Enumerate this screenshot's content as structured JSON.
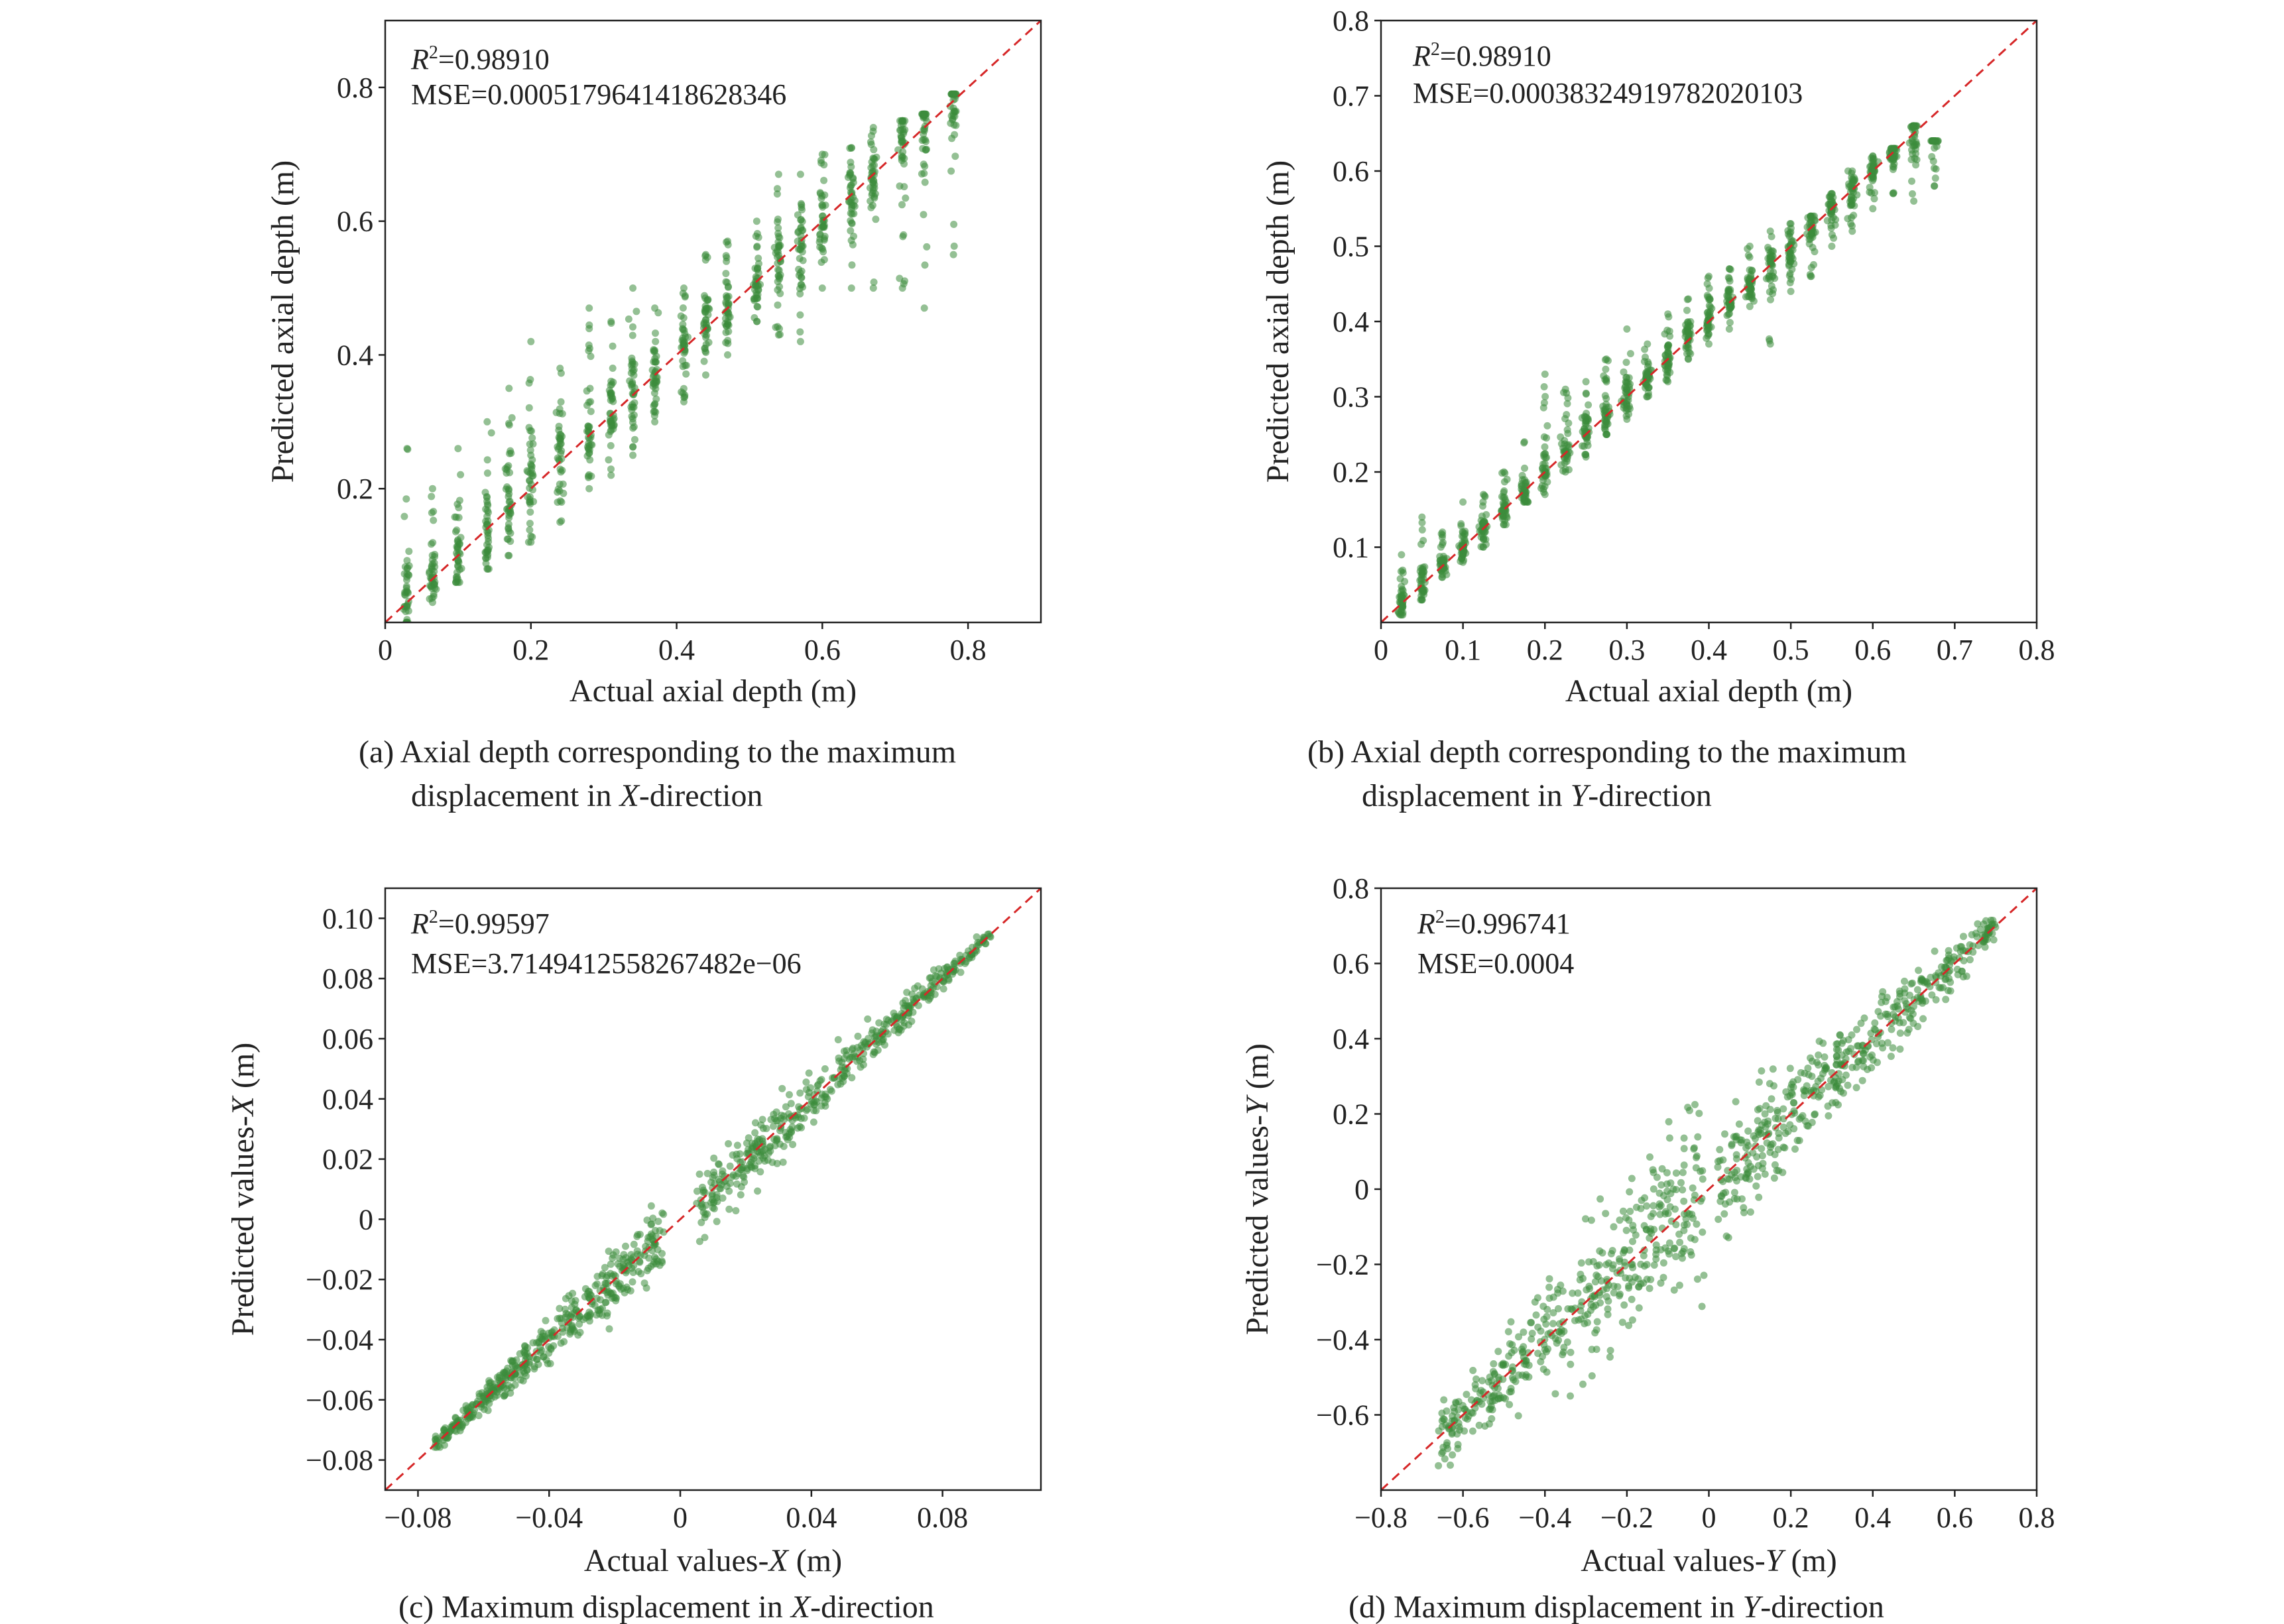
{
  "chart_data": [
    {
      "type": "scatter",
      "xlabel": {
        "pre": "Actual axial depth (m)",
        "it": "",
        "post": ""
      },
      "ylabel": {
        "pre": "Predicted axial depth (m)",
        "it": "",
        "post": ""
      },
      "xlim": [
        0,
        0.9
      ],
      "ylim": [
        0,
        0.9
      ],
      "xticks": [
        0,
        0.2,
        0.4,
        0.6,
        0.8
      ],
      "xtick_labels": [
        "0",
        "0.2",
        "0.4",
        "0.6",
        "0.8"
      ],
      "yticks": [
        0.2,
        0.4,
        0.6,
        0.8
      ],
      "ytick_labels": [
        "0.2",
        "0.4",
        "0.6",
        "0.8"
      ],
      "annotation": {
        "r2_label": "R",
        "r2_sup": "2",
        "r2_value": "=0.98910",
        "mse": "MSE=0.0005179641418628346"
      },
      "reference_line": "y = x (red dashed)",
      "point_color": "#3d8c3d",
      "line_color": "#d62728",
      "columns": [
        {
          "x": 0.03,
          "y_range": [
            0.0,
            0.26
          ]
        },
        {
          "x": 0.065,
          "y_range": [
            0.03,
            0.2
          ]
        },
        {
          "x": 0.1,
          "y_range": [
            0.06,
            0.26
          ]
        },
        {
          "x": 0.14,
          "y_range": [
            0.08,
            0.3
          ]
        },
        {
          "x": 0.17,
          "y_range": [
            0.1,
            0.35
          ]
        },
        {
          "x": 0.2,
          "y_range": [
            0.12,
            0.42
          ]
        },
        {
          "x": 0.24,
          "y_range": [
            0.15,
            0.38
          ]
        },
        {
          "x": 0.28,
          "y_range": [
            0.2,
            0.47
          ]
        },
        {
          "x": 0.31,
          "y_range": [
            0.22,
            0.45
          ]
        },
        {
          "x": 0.34,
          "y_range": [
            0.25,
            0.5
          ]
        },
        {
          "x": 0.37,
          "y_range": [
            0.3,
            0.47
          ]
        },
        {
          "x": 0.41,
          "y_range": [
            0.33,
            0.5
          ]
        },
        {
          "x": 0.44,
          "y_range": [
            0.37,
            0.55
          ]
        },
        {
          "x": 0.47,
          "y_range": [
            0.4,
            0.57
          ]
        },
        {
          "x": 0.51,
          "y_range": [
            0.45,
            0.6
          ]
        },
        {
          "x": 0.54,
          "y_range": [
            0.43,
            0.67
          ]
        },
        {
          "x": 0.57,
          "y_range": [
            0.42,
            0.67
          ]
        },
        {
          "x": 0.6,
          "y_range": [
            0.5,
            0.7
          ]
        },
        {
          "x": 0.64,
          "y_range": [
            0.5,
            0.71
          ]
        },
        {
          "x": 0.67,
          "y_range": [
            0.5,
            0.74
          ]
        },
        {
          "x": 0.71,
          "y_range": [
            0.5,
            0.75
          ]
        },
        {
          "x": 0.74,
          "y_range": [
            0.47,
            0.76
          ]
        },
        {
          "x": 0.78,
          "y_range": [
            0.55,
            0.79
          ]
        }
      ],
      "caption": {
        "line1": "(a) Axial depth corresponding to the maximum",
        "pre": "displacement in ",
        "it": "X",
        "post": "-direction"
      }
    },
    {
      "type": "scatter",
      "xlabel": {
        "pre": "Actual axial depth (m)",
        "it": "",
        "post": ""
      },
      "ylabel": {
        "pre": "Predicted axial depth (m)",
        "it": "",
        "post": ""
      },
      "xlim": [
        0,
        0.8
      ],
      "ylim": [
        0,
        0.8
      ],
      "xticks": [
        0,
        0.1,
        0.2,
        0.3,
        0.4,
        0.5,
        0.6,
        0.7,
        0.8
      ],
      "xtick_labels": [
        "0",
        "0.1",
        "0.2",
        "0.3",
        "0.4",
        "0.5",
        "0.6",
        "0.7",
        "0.8"
      ],
      "yticks": [
        0.1,
        0.2,
        0.3,
        0.4,
        0.5,
        0.6,
        0.7,
        0.8
      ],
      "ytick_labels": [
        "0.1",
        "0.2",
        "0.3",
        "0.4",
        "0.5",
        "0.6",
        "0.7",
        "0.8"
      ],
      "annotation": {
        "r2_label": "R",
        "r2_sup": "2",
        "r2_value": "=0.98910",
        "mse": "MSE=0.00038324919782020103"
      },
      "reference_line": "y = x (red dashed)",
      "point_color": "#3d8c3d",
      "line_color": "#d62728",
      "columns": [
        {
          "x": 0.025,
          "y_range": [
            0.01,
            0.09
          ]
        },
        {
          "x": 0.05,
          "y_range": [
            0.03,
            0.14
          ]
        },
        {
          "x": 0.075,
          "y_range": [
            0.06,
            0.12
          ]
        },
        {
          "x": 0.1,
          "y_range": [
            0.08,
            0.16
          ]
        },
        {
          "x": 0.125,
          "y_range": [
            0.1,
            0.17
          ]
        },
        {
          "x": 0.15,
          "y_range": [
            0.13,
            0.2
          ]
        },
        {
          "x": 0.175,
          "y_range": [
            0.16,
            0.24
          ]
        },
        {
          "x": 0.2,
          "y_range": [
            0.17,
            0.33
          ]
        },
        {
          "x": 0.225,
          "y_range": [
            0.2,
            0.31
          ]
        },
        {
          "x": 0.25,
          "y_range": [
            0.22,
            0.32
          ]
        },
        {
          "x": 0.275,
          "y_range": [
            0.25,
            0.35
          ]
        },
        {
          "x": 0.3,
          "y_range": [
            0.27,
            0.39
          ]
        },
        {
          "x": 0.325,
          "y_range": [
            0.3,
            0.37
          ]
        },
        {
          "x": 0.35,
          "y_range": [
            0.32,
            0.41
          ]
        },
        {
          "x": 0.375,
          "y_range": [
            0.35,
            0.43
          ]
        },
        {
          "x": 0.4,
          "y_range": [
            0.37,
            0.46
          ]
        },
        {
          "x": 0.425,
          "y_range": [
            0.39,
            0.47
          ]
        },
        {
          "x": 0.45,
          "y_range": [
            0.42,
            0.5
          ]
        },
        {
          "x": 0.475,
          "y_range": [
            0.37,
            0.52
          ]
        },
        {
          "x": 0.5,
          "y_range": [
            0.44,
            0.53
          ]
        },
        {
          "x": 0.525,
          "y_range": [
            0.46,
            0.54
          ]
        },
        {
          "x": 0.55,
          "y_range": [
            0.5,
            0.57
          ]
        },
        {
          "x": 0.575,
          "y_range": [
            0.52,
            0.6
          ]
        },
        {
          "x": 0.6,
          "y_range": [
            0.55,
            0.62
          ]
        },
        {
          "x": 0.625,
          "y_range": [
            0.57,
            0.63
          ]
        },
        {
          "x": 0.65,
          "y_range": [
            0.56,
            0.66
          ]
        },
        {
          "x": 0.675,
          "y_range": [
            0.58,
            0.64
          ]
        }
      ],
      "caption": {
        "line1": "(b) Axial depth corresponding to the maximum",
        "pre": "displacement in ",
        "it": "Y",
        "post": "-direction"
      }
    },
    {
      "type": "scatter",
      "xlabel": {
        "pre": "Actual values-",
        "it": "X",
        "post": " (m)"
      },
      "ylabel": {
        "pre": "Predicted values-",
        "it": "X",
        "post": " (m)"
      },
      "xlim": [
        -0.09,
        0.11
      ],
      "ylim": [
        -0.09,
        0.11
      ],
      "xticks": [
        -0.08,
        -0.04,
        0,
        0.04,
        0.08
      ],
      "xtick_labels": [
        "−0.08",
        "−0.04",
        "0",
        "0.04",
        "0.08"
      ],
      "yticks": [
        -0.08,
        -0.06,
        -0.04,
        -0.02,
        0,
        0.02,
        0.04,
        0.06,
        0.08,
        0.1
      ],
      "ytick_labels": [
        "−0.08",
        "−0.06",
        "−0.04",
        "−0.02",
        "0",
        "0.02",
        "0.04",
        "0.06",
        "0.08",
        "0.10"
      ],
      "annotation": {
        "r2_label": "R",
        "r2_sup": "2",
        "r2_value": "=0.99597",
        "mse": "MSE=3.7149412558267482e−06"
      },
      "reference_line": "y = x (red dashed)",
      "point_color": "#3d8c3d",
      "line_color": "#d62728",
      "clusters": [
        {
          "x_range": [
            -0.075,
            -0.005
          ],
          "spread": [
            0.001,
            0.006
          ]
        },
        {
          "x_range": [
            0.005,
            0.095
          ],
          "spread": [
            0.006,
            0.001
          ]
        }
      ],
      "caption": {
        "line1": "",
        "pre": "(c) Maximum displacement in ",
        "it": "X",
        "post": "-direction"
      }
    },
    {
      "type": "scatter",
      "xlabel": {
        "pre": "Actual values-",
        "it": "Y",
        "post": " (m)"
      },
      "ylabel": {
        "pre": "Predicted values-",
        "it": "Y",
        "post": " (m)"
      },
      "xlim": [
        -0.8,
        0.8
      ],
      "ylim": [
        -0.8,
        0.8
      ],
      "xticks": [
        -0.8,
        -0.6,
        -0.4,
        -0.2,
        0,
        0.2,
        0.4,
        0.6,
        0.8
      ],
      "xtick_labels": [
        "−0.8",
        "−0.6",
        "−0.4",
        "−0.2",
        "0",
        "0.2",
        "0.4",
        "0.6",
        "0.8"
      ],
      "yticks": [
        -0.6,
        -0.4,
        -0.2,
        0,
        0.2,
        0.4,
        0.6,
        0.8
      ],
      "ytick_labels": [
        "−0.6",
        "−0.4",
        "−0.2",
        "0",
        "0.2",
        "0.4",
        "0.6",
        "0.8"
      ],
      "annotation": {
        "r2_label": "R",
        "r2_sup": "2",
        "r2_value": "=0.996741",
        "mse": "MSE=0.0004"
      },
      "reference_line": "y = x (red dashed)",
      "point_color": "#3d8c3d",
      "line_color": "#d62728",
      "clusters": [
        {
          "x_range": [
            -0.66,
            -0.01
          ],
          "spread": [
            0.03,
            0.12
          ]
        },
        {
          "x_range": [
            0.01,
            0.7
          ],
          "spread": [
            0.08,
            0.02
          ]
        }
      ],
      "caption": {
        "line1": "",
        "pre": "(d) Maximum displacement in ",
        "it": "Y",
        "post": "-direction"
      }
    }
  ]
}
